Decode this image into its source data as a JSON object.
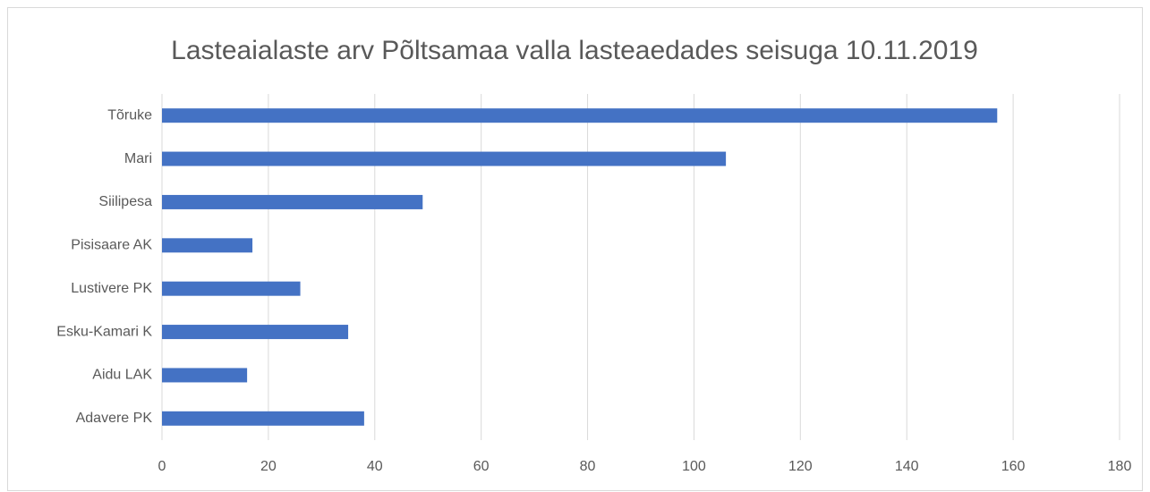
{
  "chart_data": {
    "type": "barh",
    "title": "Lasteaialaste arv Põltsamaa valla lasteaedades seisuga 10.11.2019",
    "categories": [
      "Tõruke",
      "Mari",
      "Siilipesa",
      "Pisisaare AK",
      "Lustivere PK",
      "Esku-Kamari K",
      "Aidu LAK",
      "Adavere PK"
    ],
    "values": [
      157,
      106,
      49,
      17,
      26,
      35,
      16,
      38
    ],
    "color": "#4472c4",
    "xlim": [
      0,
      180
    ],
    "xticks": [
      0,
      20,
      40,
      60,
      80,
      100,
      120,
      140,
      160,
      180
    ],
    "grid": true
  }
}
